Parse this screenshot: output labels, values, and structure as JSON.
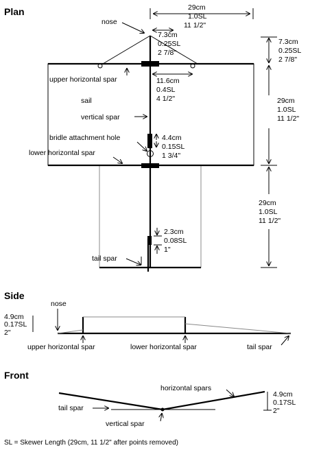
{
  "headings": {
    "plan": "Plan",
    "side": "Side",
    "front": "Front"
  },
  "plan": {
    "labels": {
      "nose": "nose",
      "upper_horizontal_spar": "upper horizontal spar",
      "sail": "sail",
      "vertical_spar": "vertical spar",
      "bridle_attachment_hole": "bridle attachment hole",
      "lower_horizontal_spar": "lower horizontal spar",
      "tail_spar": "tail spar"
    },
    "dimensions": {
      "total_width": [
        "29cm",
        "1.0SL",
        "11 1/2\""
      ],
      "nose_offset": [
        "7.3cm",
        "0.25SL",
        "2 7/8\""
      ],
      "nose_height": [
        "7.3cm",
        "0.25SL",
        "2 7/8\""
      ],
      "half_span": [
        "11.6cm",
        "0.4SL",
        "4 1/2\""
      ],
      "sail_height": [
        "29cm",
        "1.0SL",
        "11 1/2\""
      ],
      "bridle_offset": [
        "4.4cm",
        "0.15SL",
        "1 3/4\""
      ],
      "tail_height": [
        "29cm",
        "1.0SL",
        "11 1/2\""
      ],
      "tail_joint": [
        "2.3cm",
        "0.08SL",
        "1\""
      ]
    }
  },
  "side": {
    "labels": {
      "nose": "nose",
      "upper_horizontal_spar": "upper horizontal spar",
      "lower_horizontal_spar": "lower horizontal spar",
      "tail_spar": "tail spar"
    },
    "dimension": [
      "4.9cm",
      "0.17SL",
      "2\""
    ]
  },
  "front": {
    "labels": {
      "horizontal_spars": "horizontal spars",
      "tail_spar": "tail spar",
      "vertical_spar": "vertical spar"
    },
    "dimension": [
      "4.9cm",
      "0.17SL",
      "2\""
    ]
  },
  "footnote": "SL = Skewer Length (29cm, 11 1/2\" after points removed)"
}
